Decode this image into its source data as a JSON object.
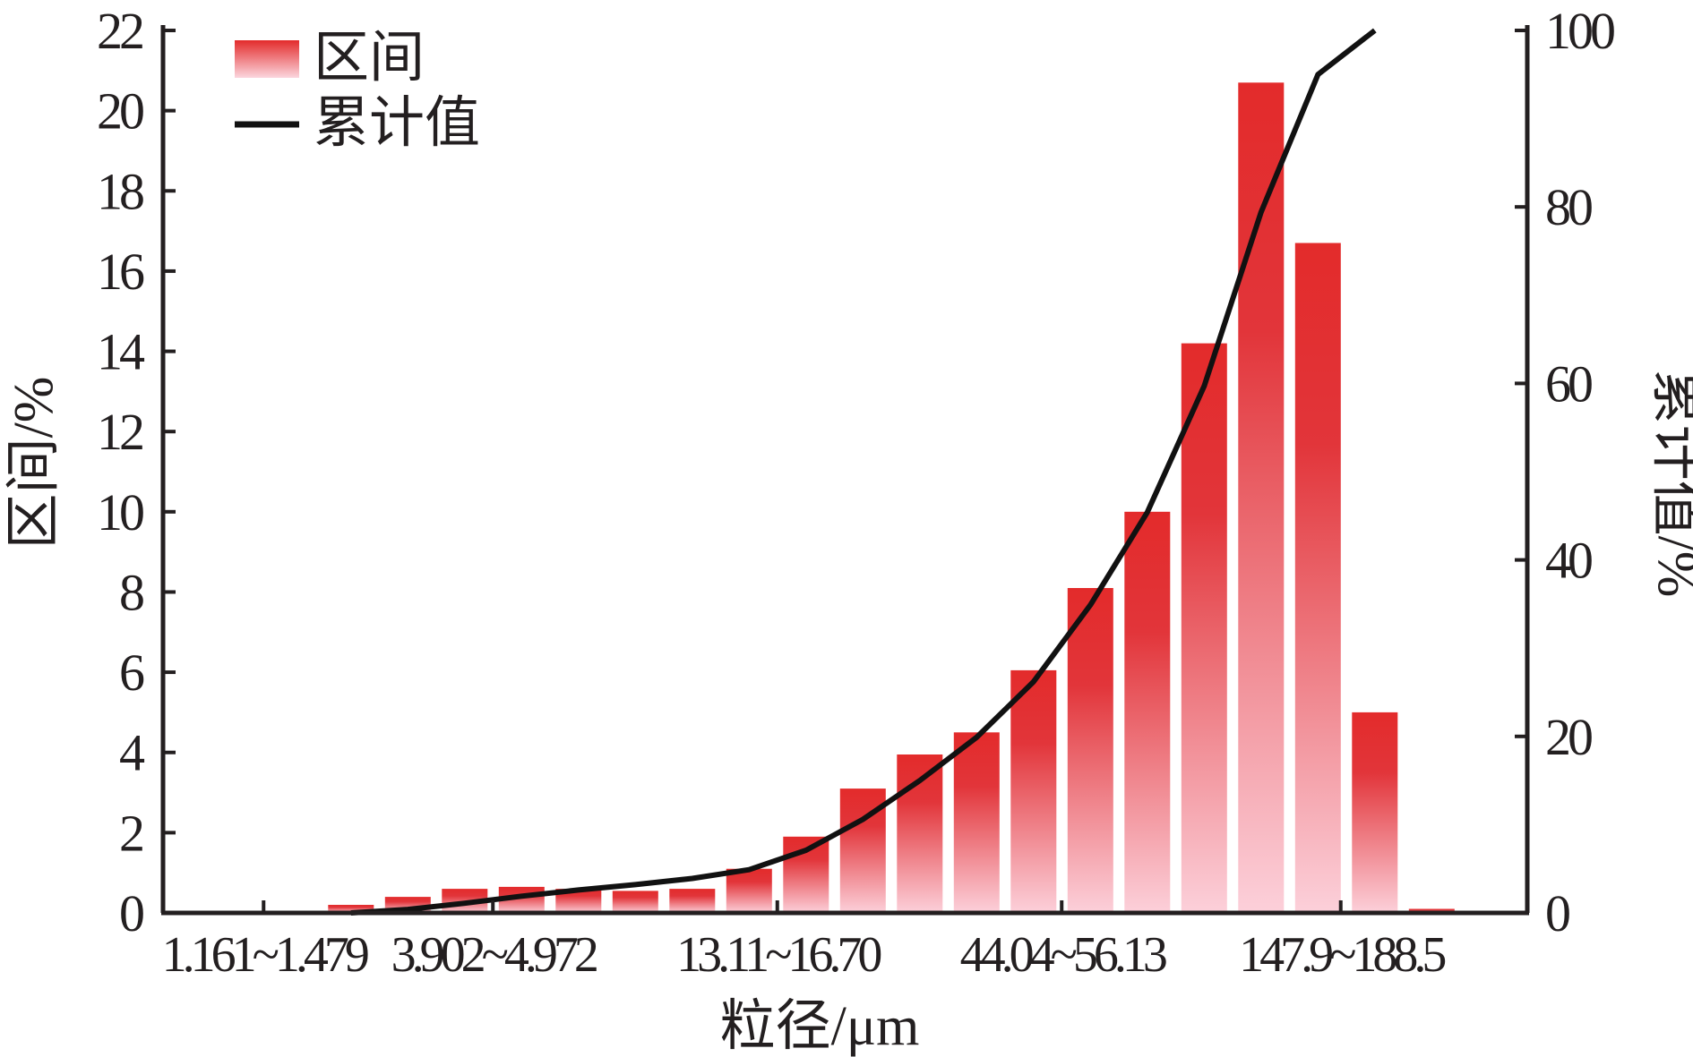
{
  "chart_data": {
    "type": "bar",
    "xlabel": "粒径/μm",
    "ylabel": "区间/%",
    "y2label": "累计值/%",
    "ylim": [
      0,
      22
    ],
    "y2lim": [
      0,
      100
    ],
    "yticks": [
      0,
      2,
      4,
      6,
      8,
      10,
      12,
      14,
      16,
      18,
      20,
      22
    ],
    "y2ticks": [
      0,
      20,
      40,
      60,
      80,
      100
    ],
    "category_count": 24,
    "category_tick_labels": [
      {
        "index": 3,
        "label": "1.161~1.479"
      },
      {
        "index": 7,
        "label": "3.902~4.972"
      },
      {
        "index": 12,
        "label": "13.11~16.70"
      },
      {
        "index": 17,
        "label": "44.04~56.13"
      },
      {
        "index": 22,
        "label": "147.9~188.5"
      }
    ],
    "series": [
      {
        "name": "区间",
        "type": "bar",
        "axis": "left",
        "values": [
          null,
          null,
          null,
          null,
          0.2,
          0.4,
          0.6,
          0.65,
          0.6,
          0.55,
          0.6,
          1.1,
          1.9,
          3.1,
          3.95,
          4.5,
          6.05,
          8.1,
          10.0,
          14.2,
          20.7,
          16.7,
          5.0,
          0.1
        ]
      },
      {
        "name": "累计值",
        "type": "line",
        "axis": "right",
        "values": [
          null,
          null,
          null,
          null,
          0,
          0.4,
          1.1,
          1.9,
          2.6,
          3.2,
          3.9,
          4.9,
          7.1,
          10.6,
          15.0,
          19.9,
          26.2,
          34.9,
          45.4,
          59.7,
          79.4,
          95.0,
          100,
          null
        ]
      }
    ],
    "legend": "top-left",
    "grid": false
  },
  "colors": {
    "bar_top": "#e32b2b",
    "bar_bottom": "#fcd0da",
    "line": "#111111",
    "axis": "#231f20"
  }
}
